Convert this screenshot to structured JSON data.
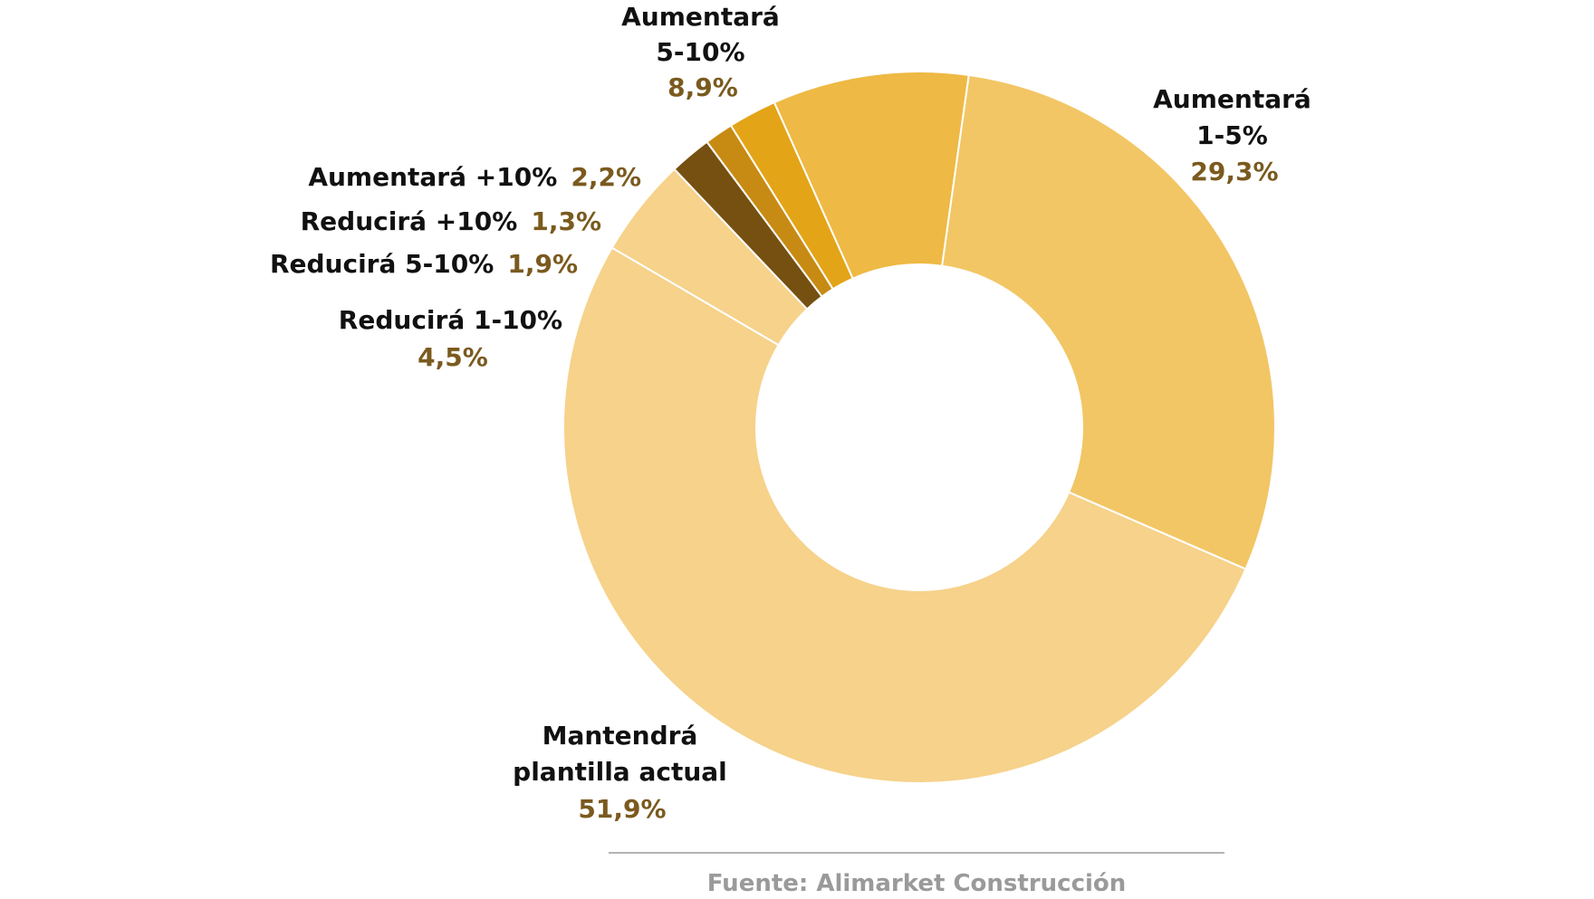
{
  "chart_data": {
    "type": "pie",
    "donut": true,
    "slices": [
      {
        "label": "Aumentará 1-5%",
        "label_lines": [
          "Aumentará",
          "1-5%"
        ],
        "value": 29.3,
        "value_text": "29,3%",
        "color": "#f2c665"
      },
      {
        "label": "Mantendrá plantilla actual",
        "label_lines": [
          "Mantendrá",
          "plantilla actual"
        ],
        "value": 51.9,
        "value_text": "51,9%",
        "color": "#f6d28a"
      },
      {
        "label": "Reducirá 1-10%",
        "label_lines": [
          "Reducirá 1-10%"
        ],
        "value": 4.5,
        "value_text": "4,5%",
        "color": "#f6d28a"
      },
      {
        "label": "Reducirá 5-10%",
        "label_lines": [
          "Reducirá 5-10%"
        ],
        "value": 1.9,
        "value_text": "1,9%",
        "color": "#765011"
      },
      {
        "label": "Reducirá +10%",
        "label_lines": [
          "Reducirá +10%"
        ],
        "value": 1.3,
        "value_text": "1,3%",
        "color": "#c78b14"
      },
      {
        "label": "Aumentará +10%",
        "label_lines": [
          "Aumentará +10%"
        ],
        "value": 2.2,
        "value_text": "2,2%",
        "color": "#e3a417"
      },
      {
        "label": "Aumentará 5-10%",
        "label_lines": [
          "Aumentará",
          "5-10%"
        ],
        "value": 8.9,
        "value_text": "8,9%",
        "color": "#eeb944"
      }
    ]
  },
  "source": "Fuente: Alimarket Construcción"
}
